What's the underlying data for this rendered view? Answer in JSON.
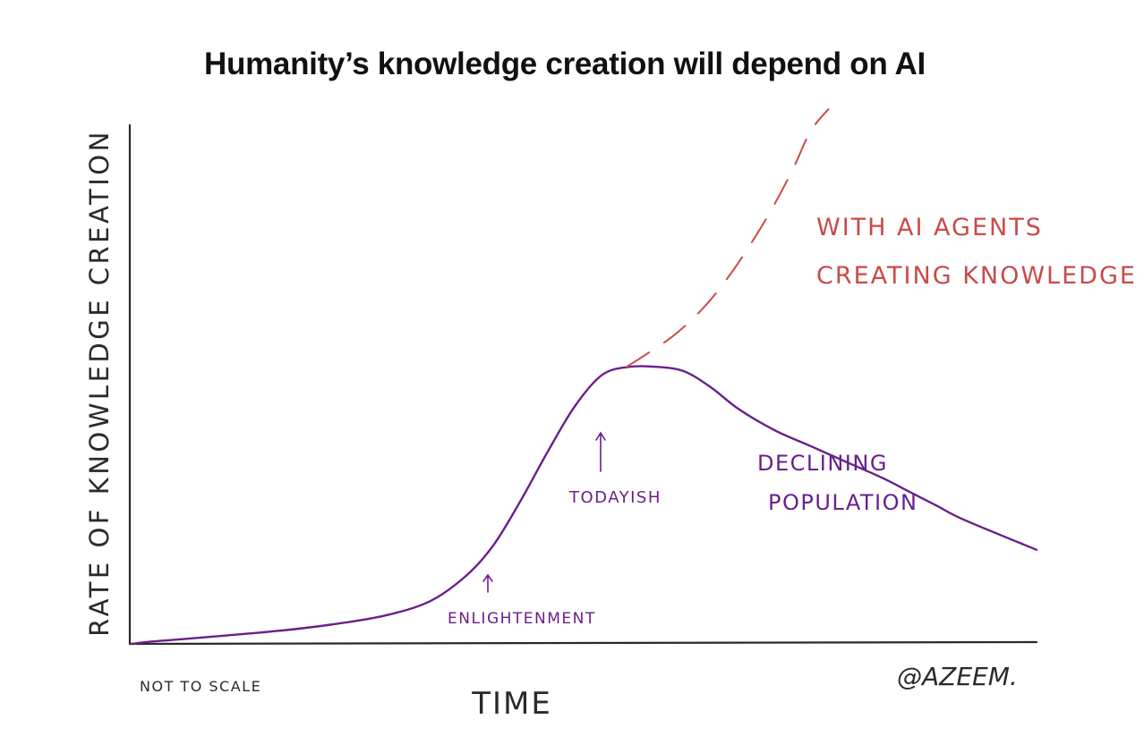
{
  "chart_data": {
    "type": "line",
    "title": "Humanity’s knowledge creation will depend on AI",
    "xlabel": "TIME",
    "ylabel": "RATE OF KNOWLEDGE CREATION",
    "grid": false,
    "legend": "none",
    "series": [
      {
        "style": "solid",
        "color": "#6a1f8a",
        "points": [
          [
            0,
            0
          ],
          [
            2,
            0.4
          ],
          [
            5,
            0.8
          ],
          [
            10,
            1.5
          ],
          [
            16,
            2.4
          ],
          [
            22,
            3.6
          ],
          [
            28,
            5.3
          ],
          [
            33,
            8.0
          ],
          [
            37,
            12.8
          ],
          [
            40,
            18.5
          ],
          [
            43,
            26.8
          ],
          [
            46,
            36.0
          ],
          [
            49,
            44.5
          ],
          [
            52,
            50.3
          ],
          [
            55,
            51.8
          ],
          [
            58,
            51.8
          ],
          [
            61,
            51.0
          ],
          [
            64,
            48.0
          ],
          [
            67,
            44.0
          ],
          [
            71,
            40.0
          ],
          [
            75,
            37.0
          ],
          [
            79,
            34.0
          ],
          [
            83,
            31.0
          ],
          [
            86,
            28.4
          ],
          [
            89,
            25.8
          ],
          [
            92,
            23.2
          ],
          [
            100,
            17.6
          ]
        ]
      },
      {
        "name": "WITH AI AGENTS CREATING KNOWLEDGE",
        "style": "dashed",
        "color": "#c94a4a",
        "points": [
          [
            54.7,
            51.8
          ],
          [
            57,
            54.3
          ],
          [
            60,
            57.8
          ],
          [
            63,
            62.5
          ],
          [
            65.5,
            67.6
          ],
          [
            68,
            73.7
          ],
          [
            70.5,
            80.6
          ],
          [
            73,
            88.5
          ],
          [
            75,
            95.8
          ],
          [
            77,
            100
          ]
        ]
      }
    ],
    "annotations": [
      {
        "text": "ENLIGHTENMENT",
        "x": 39,
        "y": 6
      },
      {
        "text": "TODAYISH",
        "x": 51,
        "y": 37
      },
      {
        "text": "DECLINING POPULATION",
        "x": 78,
        "y": 36
      },
      {
        "text": "WITH AI AGENTS CREATING KNOWLEDGE",
        "x": 78,
        "y": 80
      }
    ],
    "notes": {
      "scale": "NOT TO SCALE",
      "signature": "@AZEEM."
    }
  }
}
